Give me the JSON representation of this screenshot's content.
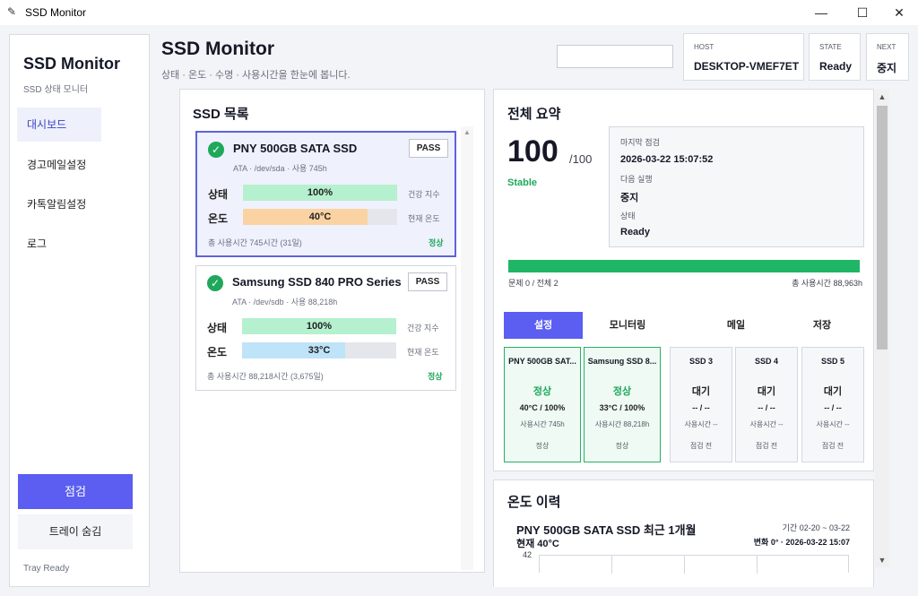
{
  "window": {
    "title": "SSD Monitor",
    "controls": {
      "minimize": "—",
      "maximize": "☐",
      "close": "✕"
    }
  },
  "sidebar": {
    "title": "SSD Monitor",
    "subtitle": "SSD 상태 모니터",
    "items": [
      {
        "label": "대시보드",
        "active": true
      },
      {
        "label": "경고메일설정"
      },
      {
        "label": "카톡알림설정"
      },
      {
        "label": "로그"
      }
    ],
    "check_button": "점검",
    "tray_button": "트레이 숨김",
    "status": "Tray Ready"
  },
  "header": {
    "title": "SSD Monitor",
    "subtitle": "상태 · 온도 · 수명 · 사용시간을 한눈에 봅니다.",
    "search_value": "",
    "host": {
      "label": "HOST",
      "value": "DESKTOP-VMEF7ET"
    },
    "state": {
      "label": "STATE",
      "value": "Ready"
    },
    "next": {
      "label": "NEXT",
      "value": "중지"
    }
  },
  "ssd_list": {
    "title": "SSD 목록",
    "items": [
      {
        "name": "PNY 500GB SATA SSD",
        "badge": "PASS",
        "meta": "ATA · /dev/sda · 사용 745h",
        "health_label": "상태",
        "health_value": "100%",
        "health_pct": 100,
        "health_right": "건강 지수",
        "temp_label": "온도",
        "temp_value": "40°C",
        "temp_pct": 81,
        "temp_right": "현재 온도",
        "footer": "총 사용시간 745시간 (31일)",
        "status": "정상"
      },
      {
        "name": "Samsung SSD 840 PRO Series",
        "badge": "PASS",
        "meta": "ATA · /dev/sdb · 사용 88,218h",
        "health_label": "상태",
        "health_value": "100%",
        "health_pct": 100,
        "health_right": "건강 지수",
        "temp_label": "온도",
        "temp_value": "33°C",
        "temp_pct": 67,
        "temp_right": "현재 온도",
        "footer": "총 사용시간 88,218시간 (3,675일)",
        "status": "정상"
      }
    ]
  },
  "summary": {
    "title": "전체 요약",
    "score": "100",
    "score_max": "/100",
    "score_state": "Stable",
    "last_check_label": "마지막 점검",
    "last_check_value": "2026-03-22 15:07:52",
    "next_run_label": "다음 실행",
    "next_run_value": "중지",
    "state_label": "상태",
    "state_value": "Ready",
    "progress_pct": 100,
    "issues": "문제 0 / 전체 2",
    "total_hours": "총 사용시간 88,963h",
    "tabs": [
      "설정",
      "모니터링",
      "메일",
      "저장"
    ],
    "slots": [
      {
        "name": "PNY 500GB SAT...",
        "state": "정상",
        "temp": "40°C / 100%",
        "usage": "사용시간 745h",
        "foot": "정상"
      },
      {
        "name": "Samsung SSD 8...",
        "state": "정상",
        "temp": "33°C / 100%",
        "usage": "사용시간 88,218h",
        "foot": "정상"
      },
      {
        "name": "SSD 3",
        "state": "대기",
        "temp": "-- / --",
        "usage": "사용시간 --",
        "foot": "점검 전"
      },
      {
        "name": "SSD 4",
        "state": "대기",
        "temp": "-- / --",
        "usage": "사용시간 --",
        "foot": "점검 전"
      },
      {
        "name": "SSD 5",
        "state": "대기",
        "temp": "-- / --",
        "usage": "사용시간 --",
        "foot": "점검 전"
      }
    ]
  },
  "history": {
    "title": "온도 이력",
    "chart_title": "PNY 500GB SATA SSD 최근 1개월",
    "current": "현재 40°C",
    "range": "기간 02-20 ~ 03-22",
    "delta": "변화 0° · 2026-03-22 15:07",
    "y_top": "42"
  },
  "colors": {
    "accent": "#5b5ef0",
    "ok": "#1fa85b",
    "health_bar": "#b5f0cf",
    "temp_bar_sda": "#fbd3a2",
    "temp_bar_sdb": "#bfe3f8"
  }
}
